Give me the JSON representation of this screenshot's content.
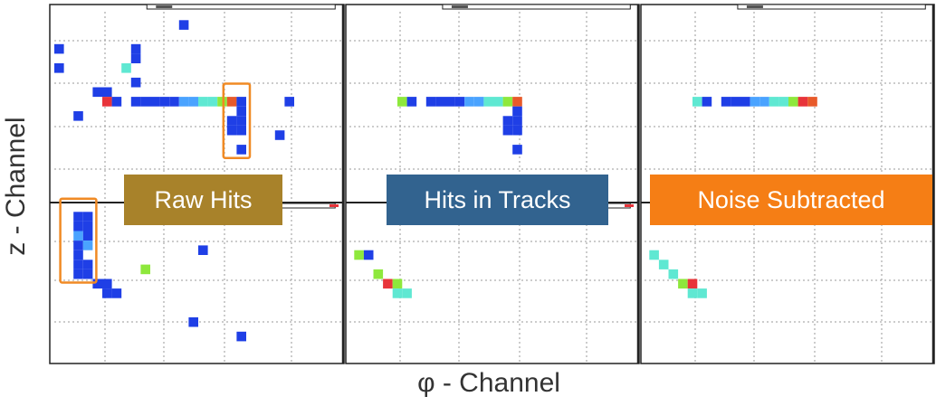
{
  "axes": {
    "ylabel": "z - Channel",
    "xlabel": "φ - Channel"
  },
  "colors": {
    "grid": "#9a9a9a",
    "frame": "#222222",
    "highlight_box": "#f08a24",
    "dark_blue": "#1f3fe6",
    "light_blue": "#4aa3ff",
    "cyan": "#5fe8d2",
    "green": "#8ee83c",
    "red": "#e8343a",
    "orange_red": "#e85a2a"
  },
  "chart_data": {
    "type": "heatmap",
    "panels": [
      {
        "name": "raw-hits",
        "label": "Raw Hits",
        "label_bg": "#a8822a",
        "hits": [
          {
            "x": 13,
            "y": 0.5,
            "c": "dark_blue"
          },
          {
            "x": 0,
            "y": 3,
            "c": "dark_blue"
          },
          {
            "x": 0,
            "y": 5,
            "c": "dark_blue"
          },
          {
            "x": 8,
            "y": 3,
            "c": "dark_blue"
          },
          {
            "x": 8,
            "y": 4,
            "c": "dark_blue"
          },
          {
            "x": 7,
            "y": 5,
            "c": "cyan"
          },
          {
            "x": 8,
            "y": 6.5,
            "c": "dark_blue"
          },
          {
            "x": 4,
            "y": 7.5,
            "c": "dark_blue"
          },
          {
            "x": 5,
            "y": 7.5,
            "c": "dark_blue"
          },
          {
            "x": 5,
            "y": 8.5,
            "c": "red"
          },
          {
            "x": 6,
            "y": 8.5,
            "c": "dark_blue"
          },
          {
            "x": 8,
            "y": 8.5,
            "c": "dark_blue"
          },
          {
            "x": 9,
            "y": 8.5,
            "c": "dark_blue"
          },
          {
            "x": 10,
            "y": 8.5,
            "c": "dark_blue"
          },
          {
            "x": 11,
            "y": 8.5,
            "c": "dark_blue"
          },
          {
            "x": 12,
            "y": 8.5,
            "c": "dark_blue"
          },
          {
            "x": 13,
            "y": 8.5,
            "c": "light_blue"
          },
          {
            "x": 14,
            "y": 8.5,
            "c": "light_blue"
          },
          {
            "x": 15,
            "y": 8.5,
            "c": "cyan"
          },
          {
            "x": 16,
            "y": 8.5,
            "c": "cyan"
          },
          {
            "x": 17,
            "y": 8.5,
            "c": "green"
          },
          {
            "x": 18,
            "y": 8.5,
            "c": "orange_red"
          },
          {
            "x": 19,
            "y": 8.5,
            "c": "dark_blue"
          },
          {
            "x": 24,
            "y": 8.5,
            "c": "dark_blue"
          },
          {
            "x": 2,
            "y": 10,
            "c": "dark_blue"
          },
          {
            "x": 19,
            "y": 9.5,
            "c": "dark_blue"
          },
          {
            "x": 18,
            "y": 10.5,
            "c": "dark_blue"
          },
          {
            "x": 19,
            "y": 10.5,
            "c": "dark_blue"
          },
          {
            "x": 18,
            "y": 11.5,
            "c": "dark_blue"
          },
          {
            "x": 19,
            "y": 11.5,
            "c": "dark_blue"
          },
          {
            "x": 23,
            "y": 12,
            "c": "dark_blue"
          },
          {
            "x": 19,
            "y": 13.5,
            "c": "dark_blue"
          },
          {
            "x": 2,
            "y": 20.5,
            "c": "dark_blue"
          },
          {
            "x": 3,
            "y": 20.5,
            "c": "dark_blue"
          },
          {
            "x": 2,
            "y": 21.5,
            "c": "dark_blue"
          },
          {
            "x": 3,
            "y": 21.5,
            "c": "dark_blue"
          },
          {
            "x": 2,
            "y": 22.5,
            "c": "light_blue"
          },
          {
            "x": 3,
            "y": 22.5,
            "c": "dark_blue"
          },
          {
            "x": 2,
            "y": 23.5,
            "c": "dark_blue"
          },
          {
            "x": 3,
            "y": 23.5,
            "c": "light_blue"
          },
          {
            "x": 2,
            "y": 24.5,
            "c": "dark_blue"
          },
          {
            "x": 2,
            "y": 25.5,
            "c": "dark_blue"
          },
          {
            "x": 3,
            "y": 25.5,
            "c": "dark_blue"
          },
          {
            "x": 2,
            "y": 26.5,
            "c": "dark_blue"
          },
          {
            "x": 3,
            "y": 26.5,
            "c": "dark_blue"
          },
          {
            "x": 4,
            "y": 27.5,
            "c": "dark_blue"
          },
          {
            "x": 5,
            "y": 27.5,
            "c": "dark_blue"
          },
          {
            "x": 5,
            "y": 28.5,
            "c": "dark_blue"
          },
          {
            "x": 6,
            "y": 28.5,
            "c": "dark_blue"
          },
          {
            "x": 15,
            "y": 24,
            "c": "dark_blue"
          },
          {
            "x": 9,
            "y": 26,
            "c": "green"
          },
          {
            "x": 14,
            "y": 31.5,
            "c": "dark_blue"
          },
          {
            "x": 19,
            "y": 33,
            "c": "dark_blue"
          }
        ],
        "highlights": [
          {
            "x0": 18,
            "x1": 20,
            "y0": 7.5,
            "y1": 14.5
          },
          {
            "x0": 1,
            "x1": 4,
            "y0": 19.5,
            "y1": 27.5
          }
        ]
      },
      {
        "name": "hits-in-tracks",
        "label": "Hits in Tracks",
        "label_bg": "#32638f",
        "hits": [
          {
            "x": 5,
            "y": 8.5,
            "c": "green"
          },
          {
            "x": 6,
            "y": 8.5,
            "c": "dark_blue"
          },
          {
            "x": 8,
            "y": 8.5,
            "c": "dark_blue"
          },
          {
            "x": 9,
            "y": 8.5,
            "c": "dark_blue"
          },
          {
            "x": 10,
            "y": 8.5,
            "c": "dark_blue"
          },
          {
            "x": 11,
            "y": 8.5,
            "c": "dark_blue"
          },
          {
            "x": 12,
            "y": 8.5,
            "c": "light_blue"
          },
          {
            "x": 13,
            "y": 8.5,
            "c": "light_blue"
          },
          {
            "x": 14,
            "y": 8.5,
            "c": "cyan"
          },
          {
            "x": 15,
            "y": 8.5,
            "c": "cyan"
          },
          {
            "x": 16,
            "y": 8.5,
            "c": "green"
          },
          {
            "x": 17,
            "y": 8.5,
            "c": "orange_red"
          },
          {
            "x": 17,
            "y": 9.5,
            "c": "dark_blue"
          },
          {
            "x": 16,
            "y": 10.5,
            "c": "dark_blue"
          },
          {
            "x": 17,
            "y": 10.5,
            "c": "dark_blue"
          },
          {
            "x": 16,
            "y": 11.5,
            "c": "dark_blue"
          },
          {
            "x": 17,
            "y": 11.5,
            "c": "dark_blue"
          },
          {
            "x": 17,
            "y": 13.5,
            "c": "dark_blue"
          },
          {
            "x": 0.5,
            "y": 24.5,
            "c": "green"
          },
          {
            "x": 1.5,
            "y": 24.5,
            "c": "dark_blue"
          },
          {
            "x": 2.5,
            "y": 26.5,
            "c": "green"
          },
          {
            "x": 3.5,
            "y": 27.5,
            "c": "red"
          },
          {
            "x": 4.5,
            "y": 27.5,
            "c": "green"
          },
          {
            "x": 4.5,
            "y": 28.5,
            "c": "cyan"
          },
          {
            "x": 5.5,
            "y": 28.5,
            "c": "cyan"
          }
        ]
      },
      {
        "name": "noise-subtracted",
        "label": "Noise Subtracted",
        "label_bg": "#f57e15",
        "hits": [
          {
            "x": 5,
            "y": 8.5,
            "c": "cyan"
          },
          {
            "x": 6,
            "y": 8.5,
            "c": "dark_blue"
          },
          {
            "x": 8,
            "y": 8.5,
            "c": "dark_blue"
          },
          {
            "x": 9,
            "y": 8.5,
            "c": "dark_blue"
          },
          {
            "x": 10,
            "y": 8.5,
            "c": "dark_blue"
          },
          {
            "x": 11,
            "y": 8.5,
            "c": "light_blue"
          },
          {
            "x": 12,
            "y": 8.5,
            "c": "light_blue"
          },
          {
            "x": 13,
            "y": 8.5,
            "c": "cyan"
          },
          {
            "x": 14,
            "y": 8.5,
            "c": "cyan"
          },
          {
            "x": 15,
            "y": 8.5,
            "c": "green"
          },
          {
            "x": 16,
            "y": 8.5,
            "c": "red"
          },
          {
            "x": 17,
            "y": 8.5,
            "c": "orange_red"
          },
          {
            "x": 0.5,
            "y": 24.5,
            "c": "cyan"
          },
          {
            "x": 1.5,
            "y": 25.5,
            "c": "cyan"
          },
          {
            "x": 2.5,
            "y": 26.5,
            "c": "cyan"
          },
          {
            "x": 3.5,
            "y": 27.5,
            "c": "green"
          },
          {
            "x": 4.5,
            "y": 27.5,
            "c": "red"
          },
          {
            "x": 4.5,
            "y": 28.5,
            "c": "cyan"
          },
          {
            "x": 5.5,
            "y": 28.5,
            "c": "cyan"
          }
        ]
      }
    ]
  }
}
